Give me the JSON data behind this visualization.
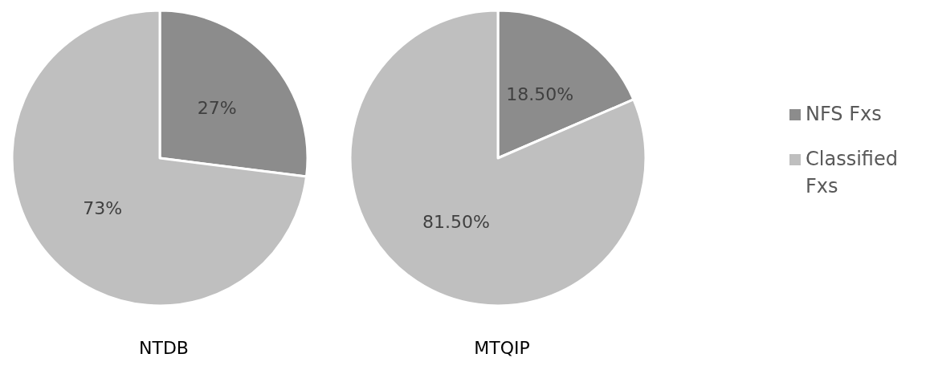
{
  "chart_data": {
    "type": "pie",
    "categories": [
      "NFS Fxs",
      "Classified Fxs"
    ],
    "colors": [
      "#8c8c8c",
      "#bfbfbf"
    ],
    "legend": "right",
    "series": [
      {
        "name": "NTDB",
        "values": [
          27,
          73
        ],
        "value_labels": [
          "27%",
          "73%"
        ]
      },
      {
        "name": "MTQIP",
        "values": [
          18.5,
          81.5
        ],
        "value_labels": [
          "18.50%",
          "81.50%"
        ]
      }
    ]
  }
}
